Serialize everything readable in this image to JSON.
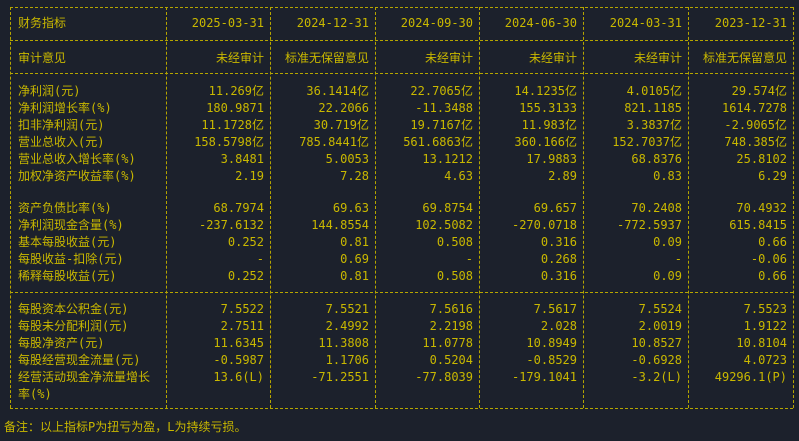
{
  "header": {
    "label": "财务指标",
    "dates": [
      "2025-03-31",
      "2024-12-31",
      "2024-09-30",
      "2024-06-30",
      "2024-03-31",
      "2023-12-31"
    ]
  },
  "audit": {
    "label": "审计意见",
    "values": [
      "未经审计",
      "标准无保留意见",
      "未经审计",
      "未经审计",
      "未经审计",
      "标准无保留意见"
    ]
  },
  "groups": [
    {
      "rows": [
        {
          "label": "净利润(元)",
          "values": [
            "11.269亿",
            "36.1414亿",
            "22.7065亿",
            "14.1235亿",
            "4.0105亿",
            "29.574亿"
          ]
        },
        {
          "label": "净利润增长率(%)",
          "values": [
            "180.9871",
            "22.2066",
            "-11.3488",
            "155.3133",
            "821.1185",
            "1614.7278"
          ]
        },
        {
          "label": "扣非净利润(元)",
          "values": [
            "11.1728亿",
            "30.719亿",
            "19.7167亿",
            "11.983亿",
            "3.3837亿",
            "-2.9065亿"
          ]
        },
        {
          "label": "营业总收入(元)",
          "values": [
            "158.5798亿",
            "785.8441亿",
            "561.6863亿",
            "360.166亿",
            "152.7037亿",
            "748.385亿"
          ]
        },
        {
          "label": "营业总收入增长率(%)",
          "values": [
            "3.8481",
            "5.0053",
            "13.1212",
            "17.9883",
            "68.8376",
            "25.8102"
          ]
        },
        {
          "label": "加权净资产收益率(%)",
          "values": [
            "2.19",
            "7.28",
            "4.63",
            "2.89",
            "0.83",
            "6.29"
          ]
        }
      ]
    },
    {
      "rows": [
        {
          "label": "资产负债比率(%)",
          "values": [
            "68.7974",
            "69.63",
            "69.8754",
            "69.657",
            "70.2408",
            "70.4932"
          ]
        },
        {
          "label": "净利润现金含量(%)",
          "values": [
            "-237.6132",
            "144.8554",
            "102.5082",
            "-270.0718",
            "-772.5937",
            "615.8415"
          ]
        },
        {
          "label": "基本每股收益(元)",
          "values": [
            "0.252",
            "0.81",
            "0.508",
            "0.316",
            "0.09",
            "0.66"
          ]
        },
        {
          "label": "每股收益-扣除(元)",
          "values": [
            "-",
            "0.69",
            "-",
            "0.268",
            "-",
            "-0.06"
          ]
        },
        {
          "label": "稀释每股收益(元)",
          "values": [
            "0.252",
            "0.81",
            "0.508",
            "0.316",
            "0.09",
            "0.66"
          ]
        }
      ]
    },
    {
      "rows": [
        {
          "label": "每股资本公积金(元)",
          "values": [
            "7.5522",
            "7.5521",
            "7.5616",
            "7.5617",
            "7.5524",
            "7.5523"
          ]
        },
        {
          "label": "每股未分配利润(元)",
          "values": [
            "2.7511",
            "2.4992",
            "2.2198",
            "2.028",
            "2.0019",
            "1.9122"
          ]
        },
        {
          "label": "每股净资产(元)",
          "values": [
            "11.6345",
            "11.3808",
            "11.0778",
            "10.8949",
            "10.8527",
            "10.8104"
          ]
        },
        {
          "label": "每股经营现金流量(元)",
          "values": [
            "-0.5987",
            "1.1706",
            "0.5204",
            "-0.8529",
            "-0.6928",
            "4.0723"
          ]
        },
        {
          "label": "经营活动现金净流量增长",
          "label2": "率(%)",
          "values": [
            "13.6(L)",
            "-71.2551",
            "-77.8039",
            "-179.1041",
            "-3.2(L)",
            "49296.1(P)"
          ]
        }
      ]
    }
  ],
  "footer": "备注：以上指标P为扭亏为盈，L为持续亏损。",
  "colors": {
    "background": "#1c212c",
    "text": "#c9b800",
    "lines": "#b5a500"
  }
}
